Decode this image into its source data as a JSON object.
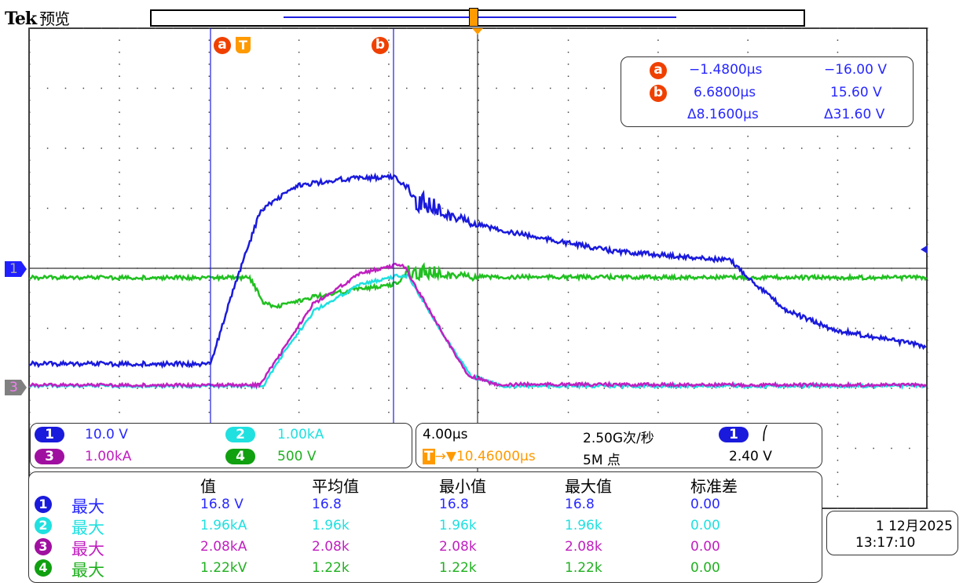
{
  "header": {
    "brand": "Tek",
    "mode": "预览"
  },
  "colors": {
    "ch1": "#1a1adc",
    "ch2": "#20e0e0",
    "ch3": "#c020c0",
    "ch4": "#20c020",
    "cursor": "#f04000",
    "trigger": "#ff9a00"
  },
  "cursors": {
    "a_label": "a",
    "b_label": "b",
    "trigger_label": "T",
    "a_time": "−1.4800µs",
    "a_value": "−16.00 V",
    "b_time": "6.6800µs",
    "b_value": "15.60 V",
    "delta_time": "Δ8.1600µs",
    "delta_value": "Δ31.60 V"
  },
  "channels": [
    {
      "num": "1",
      "scale": "10.0 V"
    },
    {
      "num": "2",
      "scale": "1.00kA"
    },
    {
      "num": "3",
      "scale": "1.00kA"
    },
    {
      "num": "4",
      "scale": "500 V"
    }
  ],
  "timebase": {
    "scale": "4.00µs",
    "sample_rate": "2.50G次/秒",
    "trigger_pos": "10.46000µs",
    "record": "5M 点",
    "trigger_source": "1",
    "trigger_slope": "⎛",
    "trigger_level": "2.40 V"
  },
  "measurements": {
    "headers": [
      "值",
      "平均值",
      "最小值",
      "最大值",
      "标准差"
    ],
    "rows": [
      {
        "ch": "1",
        "type": "最大",
        "values": [
          "16.8 V",
          "16.8",
          "16.8",
          "16.8",
          "0.00"
        ]
      },
      {
        "ch": "2",
        "type": "最大",
        "values": [
          "1.96kA",
          "1.96k",
          "1.96k",
          "1.96k",
          "0.00"
        ]
      },
      {
        "ch": "3",
        "type": "最大",
        "values": [
          "2.08kA",
          "2.08k",
          "2.08k",
          "2.08k",
          "0.00"
        ]
      },
      {
        "ch": "4",
        "type": "最大",
        "values": [
          "1.22kV",
          "1.22k",
          "1.22k",
          "1.22k",
          "0.00"
        ]
      }
    ]
  },
  "datetime": {
    "date": "1 12月2025",
    "time": "13:17:10"
  }
}
